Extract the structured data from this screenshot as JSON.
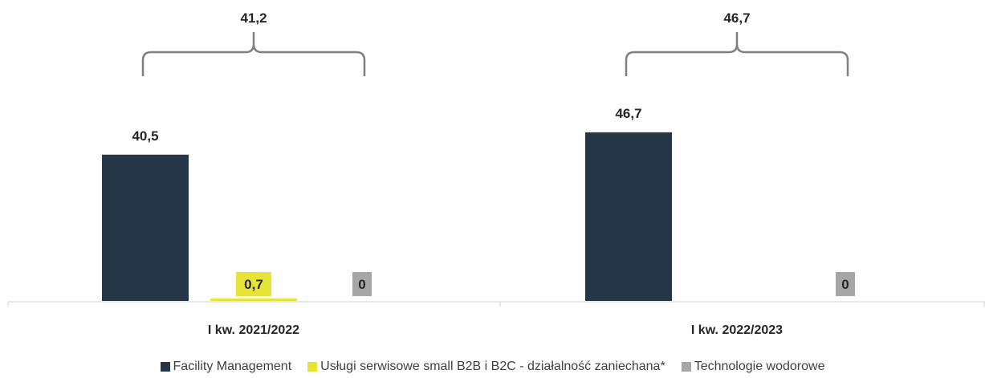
{
  "chart_data": {
    "type": "bar",
    "categories": [
      "I kw. 2021/2022",
      "I kw. 2022/2023"
    ],
    "series": [
      {
        "name": "Facility Management",
        "values": [
          40.5,
          46.7
        ],
        "labels": [
          "40,5",
          "46,7"
        ],
        "color": "#253746"
      },
      {
        "name": "Usługi serwisowe small B2B i B2C - działalność zaniechana*",
        "values": [
          0.7,
          null
        ],
        "labels": [
          "0,7",
          ""
        ],
        "color": "#E8E337"
      },
      {
        "name": "Technologie wodorowe",
        "values": [
          0,
          0
        ],
        "labels": [
          "0",
          "0"
        ],
        "color": "#A6A6A6"
      }
    ],
    "totals": [
      "41,2",
      "46,7"
    ],
    "title": "",
    "xlabel": "",
    "ylabel": "",
    "legend_position": "bottom",
    "grid": false
  }
}
